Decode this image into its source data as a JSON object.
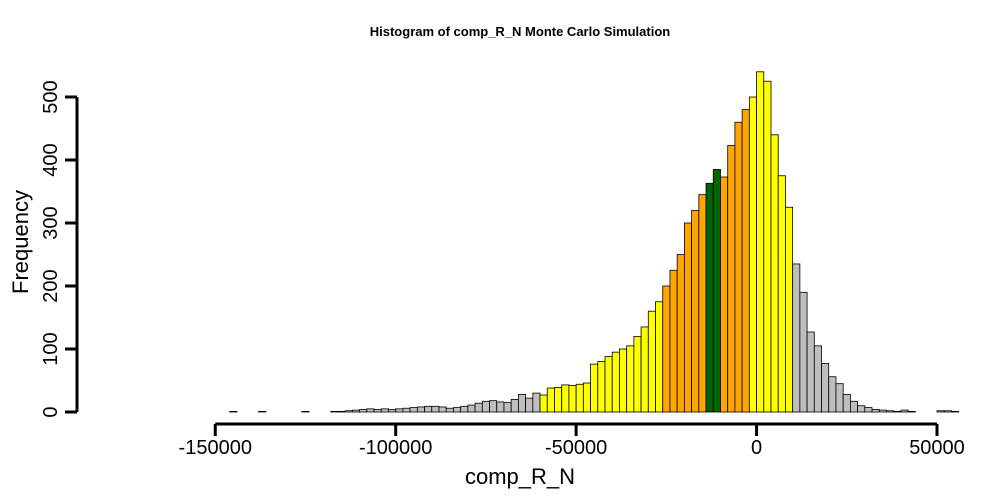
{
  "chart_data": {
    "type": "bar",
    "title": "Histogram of  comp_R_N  Monte Carlo Simulation",
    "xlabel": "comp_R_N",
    "ylabel": "Frequency",
    "xlim": [
      -180000,
      50000
    ],
    "ylim": [
      0,
      550
    ],
    "x_ticks": [
      -150000,
      -100000,
      -50000,
      0,
      50000
    ],
    "x_tick_labels": [
      "-150000",
      "-100000",
      "-50000",
      "0",
      "50000"
    ],
    "y_ticks": [
      0,
      100,
      200,
      300,
      400,
      500
    ],
    "y_tick_labels": [
      "0",
      "100",
      "200",
      "300",
      "400",
      "500"
    ],
    "bin_width": 2000,
    "bin_start": -178000,
    "values": [
      0,
      0,
      0,
      0,
      0,
      0,
      0,
      0,
      0,
      0,
      0,
      0,
      0,
      0,
      0,
      0,
      1,
      0,
      0,
      0,
      1,
      0,
      0,
      0,
      0,
      0,
      1,
      0,
      0,
      0,
      1,
      1,
      2,
      3,
      4,
      5,
      4,
      5,
      4,
      5,
      6,
      7,
      8,
      9,
      9,
      8,
      6,
      7,
      9,
      11,
      14,
      17,
      18,
      16,
      15,
      20,
      28,
      22,
      30,
      27,
      38,
      39,
      43,
      42,
      44,
      46,
      76,
      80,
      88,
      95,
      100,
      105,
      120,
      135,
      160,
      175,
      200,
      225,
      250,
      300,
      320,
      345,
      363,
      385,
      373,
      423,
      460,
      480,
      500,
      540,
      525,
      440,
      375,
      325,
      235,
      190,
      127,
      105,
      77,
      56,
      45,
      28,
      17,
      10,
      7,
      4,
      3,
      2,
      1,
      3,
      1,
      0,
      0,
      0,
      2,
      2,
      1
    ],
    "fill_ranges": [
      {
        "from": -180000,
        "to": -60000,
        "color": "#bebebe"
      },
      {
        "from": -60000,
        "to": -26000,
        "color": "#ffff00"
      },
      {
        "from": -26000,
        "to": -14000,
        "color": "#ffa500"
      },
      {
        "from": -14000,
        "to": -10000,
        "color": "#006400"
      },
      {
        "from": -10000,
        "to": -2000,
        "color": "#ffa500"
      },
      {
        "from": -2000,
        "to": 10000,
        "color": "#ffff00"
      },
      {
        "from": 10000,
        "to": 50000,
        "color": "#bebebe"
      }
    ],
    "bar_stroke": "#000000",
    "grid": false,
    "legend": "none"
  }
}
